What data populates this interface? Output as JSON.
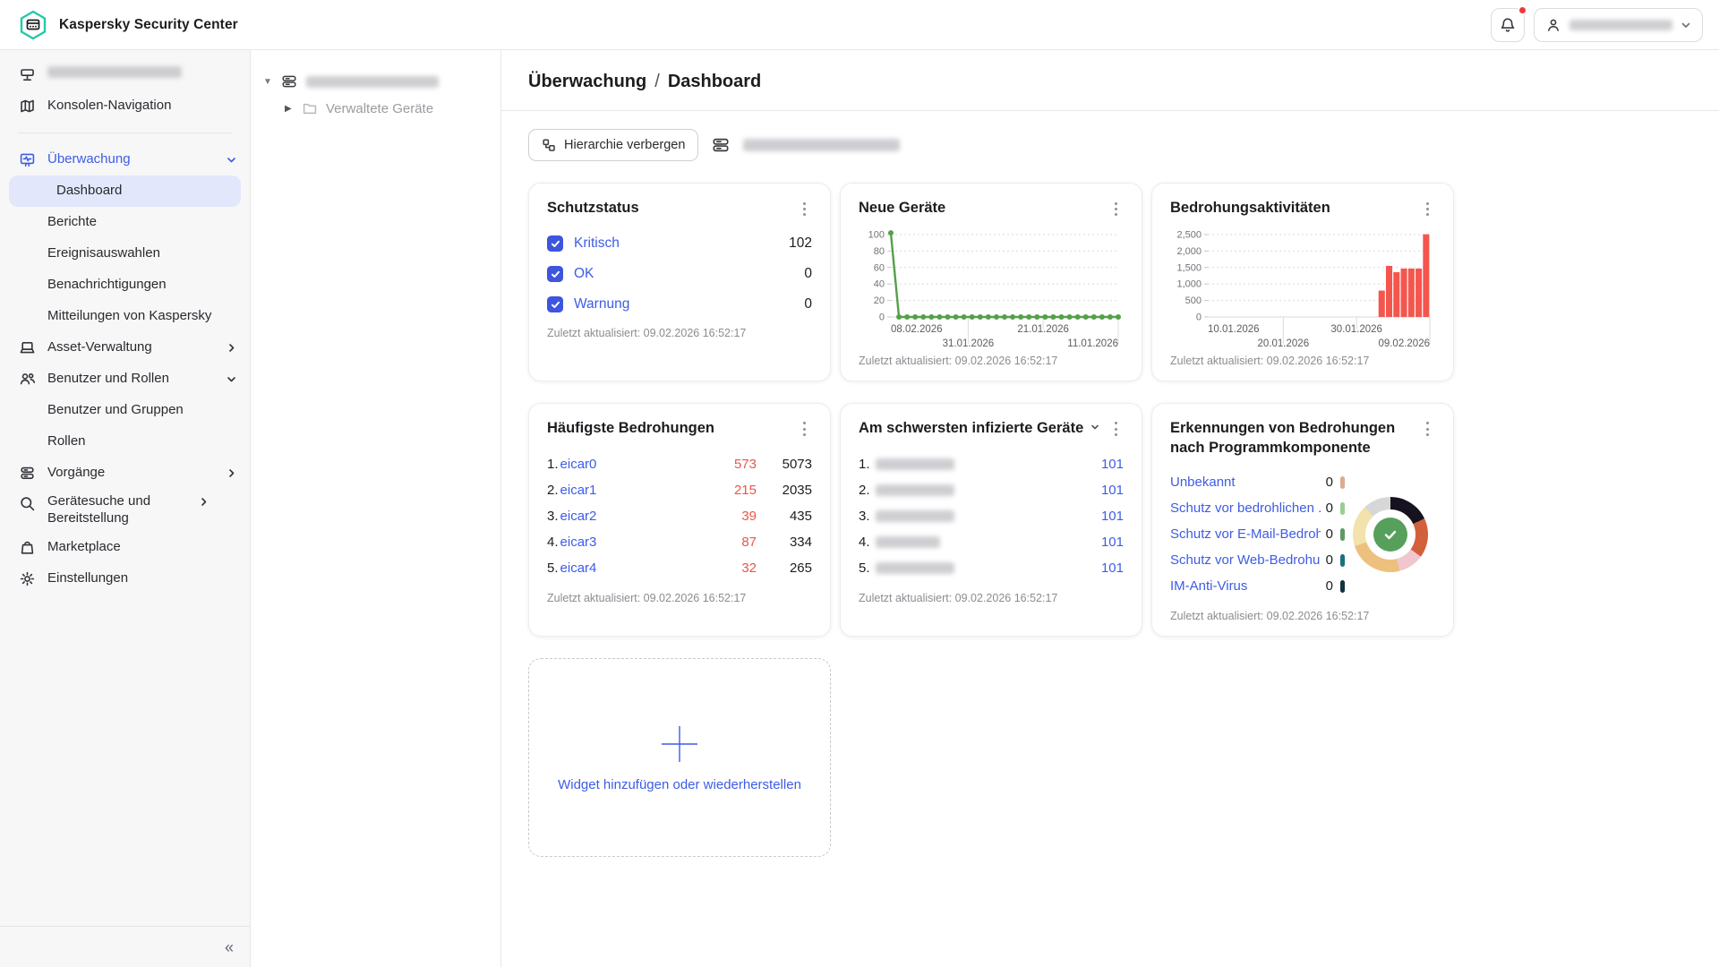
{
  "header": {
    "app_title": "Kaspersky Security Center"
  },
  "sidebar": {
    "items": [
      {
        "label": "Konsolen-Navigation"
      },
      {
        "label": "Überwachung"
      },
      {
        "label": "Dashboard"
      },
      {
        "label": "Berichte"
      },
      {
        "label": "Ereignisauswahlen"
      },
      {
        "label": "Benachrichtigungen"
      },
      {
        "label": "Mitteilungen von Kaspersky"
      },
      {
        "label": "Asset-Verwaltung"
      },
      {
        "label": "Benutzer und Rollen"
      },
      {
        "label": "Benutzer und Gruppen"
      },
      {
        "label": "Rollen"
      },
      {
        "label": "Vorgänge"
      },
      {
        "label": "Gerätesuche und Bereitstellung"
      },
      {
        "label": "Marketplace"
      },
      {
        "label": "Einstellungen"
      }
    ],
    "collapse_glyph": "«"
  },
  "tree": {
    "child_label": "Verwaltete Geräte"
  },
  "main": {
    "breadcrumb": {
      "section": "Überwachung",
      "separator": "/",
      "page": "Dashboard"
    },
    "toolbar": {
      "hide_hierarchy_label": "Hierarchie verbergen"
    }
  },
  "widgets": {
    "updated_text": "Zuletzt aktualisiert: 09.02.2026 16:52:17",
    "protection": {
      "title": "Schutzstatus",
      "rows": [
        {
          "label": "Kritisch",
          "value": "102"
        },
        {
          "label": "OK",
          "value": "0"
        },
        {
          "label": "Warnung",
          "value": "0"
        }
      ]
    },
    "new_devices": {
      "title": "Neue Geräte"
    },
    "threat_activity": {
      "title": "Bedrohungsaktivitäten"
    },
    "top_threats": {
      "title": "Häufigste Bedrohungen",
      "rows": [
        {
          "rank": "1.",
          "name": "eicar0",
          "critical": "573",
          "total": "5073"
        },
        {
          "rank": "2.",
          "name": "eicar1",
          "critical": "215",
          "total": "2035"
        },
        {
          "rank": "3.",
          "name": "eicar2",
          "critical": "39",
          "total": "435"
        },
        {
          "rank": "4.",
          "name": "eicar3",
          "critical": "87",
          "total": "334"
        },
        {
          "rank": "5.",
          "name": "eicar4",
          "critical": "32",
          "total": "265"
        }
      ]
    },
    "infected_devices": {
      "title": "Am schwersten infizierte Geräte",
      "rows": [
        {
          "rank": "1.",
          "value": "101"
        },
        {
          "rank": "2.",
          "value": "101"
        },
        {
          "rank": "3.",
          "value": "101"
        },
        {
          "rank": "4.",
          "value": "101"
        },
        {
          "rank": "5.",
          "value": "101"
        }
      ]
    },
    "detections": {
      "title": "Erkennungen von Bedrohungen nach Programmkomponente",
      "legend": [
        {
          "label": "Unbekannt",
          "value": "0",
          "color": "#dcab92"
        },
        {
          "label": "Schutz vor bedrohlichen ...",
          "value": "0",
          "color": "#97cf93"
        },
        {
          "label": "Schutz vor E-Mail-Bedroh...",
          "value": "0",
          "color": "#5e9a68"
        },
        {
          "label": "Schutz vor Web-Bedrohu...",
          "value": "0",
          "color": "#1e6f7e"
        },
        {
          "label": "IM-Anti-Virus",
          "value": "0",
          "color": "#12333f"
        }
      ]
    },
    "add_widget": {
      "label": "Widget hinzufügen oder wiederherstellen"
    }
  },
  "chart_data": [
    {
      "id": "new_devices",
      "type": "line",
      "title": "Neue Geräte",
      "ylim": [
        0,
        100
      ],
      "yticks": [
        "100",
        "80",
        "60",
        "40",
        "20",
        "0"
      ],
      "x_tick_labels": [
        {
          "label": "08.02.2026",
          "pos": 0.0,
          "row": 1,
          "anchor": "start"
        },
        {
          "label": "31.01.2026",
          "pos": 0.34,
          "row": 2,
          "anchor": "middle"
        },
        {
          "label": "21.01.2026",
          "pos": 0.67,
          "row": 1,
          "anchor": "middle"
        },
        {
          "label": "11.01.2026",
          "pos": 1.0,
          "row": 2,
          "anchor": "end"
        }
      ],
      "values": [
        102,
        0,
        0,
        0,
        0,
        0,
        0,
        0,
        0,
        0,
        0,
        0,
        0,
        0,
        0,
        0,
        0,
        0,
        0,
        0,
        0,
        0,
        0,
        0,
        0,
        0,
        0,
        0,
        0
      ],
      "line_color": "#54a049",
      "grid": "dashed"
    },
    {
      "id": "threat_activity",
      "type": "bar",
      "title": "Bedrohungsaktivitäten",
      "ylim": [
        0,
        2500
      ],
      "yticks": [
        "2,500",
        "2,000",
        "1,500",
        "1,000",
        "500",
        "0"
      ],
      "x_tick_labels": [
        {
          "label": "10.01.2026",
          "pos": 0.0,
          "row": 1,
          "anchor": "start"
        },
        {
          "label": "20.01.2026",
          "pos": 0.34,
          "row": 2,
          "anchor": "middle"
        },
        {
          "label": "30.01.2026",
          "pos": 0.67,
          "row": 1,
          "anchor": "middle"
        },
        {
          "label": "09.02.2026",
          "pos": 1.0,
          "row": 2,
          "anchor": "end"
        }
      ],
      "slots": 30,
      "bars": [
        {
          "slot": 23,
          "value": 800
        },
        {
          "slot": 24,
          "value": 1550
        },
        {
          "slot": 25,
          "value": 1360
        },
        {
          "slot": 26,
          "value": 1470
        },
        {
          "slot": 27,
          "value": 1470
        },
        {
          "slot": 28,
          "value": 1470
        },
        {
          "slot": 29,
          "value": 2510
        }
      ],
      "bar_color": "#f4564e",
      "grid": "dashed"
    },
    {
      "id": "detections_donut",
      "type": "pie",
      "title": "Erkennungen von Bedrohungen nach Programmkomponente",
      "segments": [
        {
          "color": "#17121f",
          "pct": 18
        },
        {
          "color": "#d2603c",
          "pct": 17
        },
        {
          "color": "#f2c6ce",
          "pct": 11
        },
        {
          "color": "#eec07e",
          "pct": 24
        },
        {
          "color": "#f2e2ac",
          "pct": 18
        },
        {
          "color": "#d7d7d7",
          "pct": 12
        }
      ],
      "center_badge": "check",
      "center_color": "#57a05c"
    }
  ]
}
